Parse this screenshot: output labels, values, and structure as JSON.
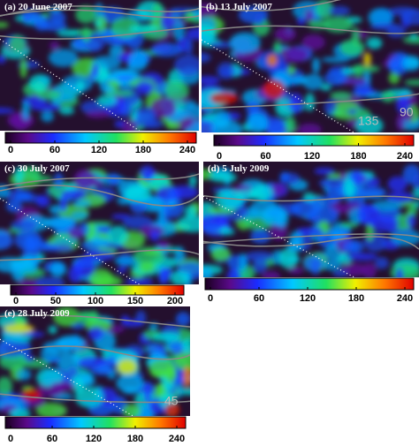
{
  "panels": [
    {
      "label": "(a) 20 June 2007",
      "colorbar_ticks": [
        0,
        60,
        120,
        180,
        240
      ]
    },
    {
      "label": "(b) 13 July 2007",
      "colorbar_ticks": [
        0,
        60,
        120,
        180,
        240
      ],
      "annotations": [
        135,
        90
      ]
    },
    {
      "label": "(c) 30 July 2007",
      "colorbar_ticks": [
        0,
        50,
        100,
        150,
        200
      ]
    },
    {
      "label": "(d) 5 July 2009",
      "colorbar_ticks": [
        0,
        60,
        120,
        180,
        240
      ]
    },
    {
      "label": "(e) 28 July 2009",
      "colorbar_ticks": [
        0,
        60,
        120,
        180,
        240
      ],
      "annotations": [
        45
      ]
    }
  ]
}
